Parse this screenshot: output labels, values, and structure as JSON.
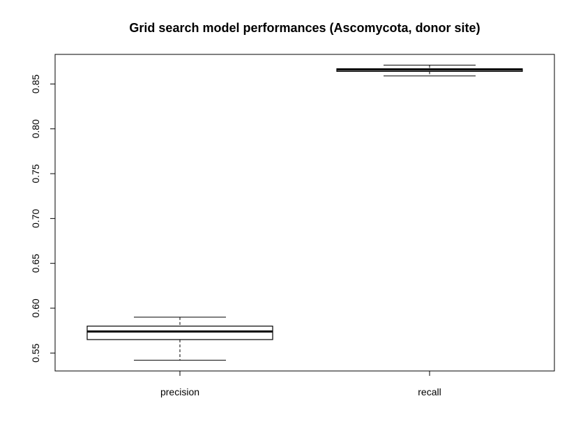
{
  "chart_data": {
    "type": "boxplot",
    "title": "Grid search model performances (Ascomycota, donor site)",
    "xlabel": "",
    "ylabel": "",
    "ylim": [
      0.53,
      0.883
    ],
    "y_ticks": [
      0.55,
      0.6,
      0.65,
      0.7,
      0.75,
      0.8,
      0.85
    ],
    "y_tick_labels": [
      "0.55",
      "0.60",
      "0.65",
      "0.70",
      "0.75",
      "0.80",
      "0.85"
    ],
    "categories": [
      "precision",
      "recall"
    ],
    "boxes": [
      {
        "label": "precision",
        "min": 0.542,
        "q1": 0.565,
        "median": 0.574,
        "q3": 0.58,
        "max": 0.59
      },
      {
        "label": "recall",
        "min": 0.859,
        "q1": 0.864,
        "median": 0.866,
        "q3": 0.867,
        "max": 0.871
      }
    ],
    "grid": false,
    "legend": "none"
  }
}
